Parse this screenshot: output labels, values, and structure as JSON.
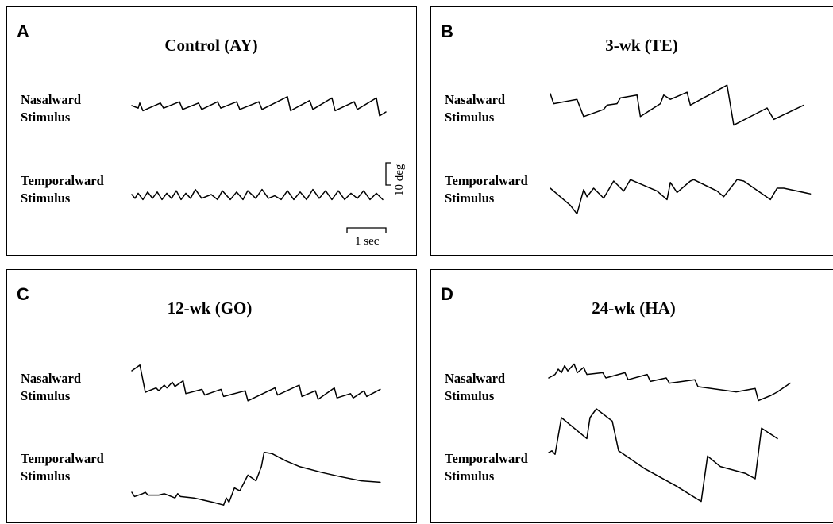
{
  "panels": [
    {
      "letter": "A",
      "title": "Control (AY)"
    },
    {
      "letter": "B",
      "title": "3-wk (TE)"
    },
    {
      "letter": "C",
      "title": "12-wk (GO)"
    },
    {
      "letter": "D",
      "title": "24-wk (HA)"
    }
  ],
  "labels": {
    "nasal_1": "Nasalward",
    "nasal_2": "Stimulus",
    "temporal_1": "Temporalward",
    "temporal_2": "Stimulus"
  },
  "scale_bar": {
    "vertical": "10 deg",
    "horizontal": "1 sec"
  },
  "chart_data": [
    {
      "type": "line",
      "title": "Control (AY)",
      "series": [
        {
          "name": "Nasalward Stimulus",
          "points": [
            [
              0,
              0
            ],
            [
              0.2,
              -0.4
            ],
            [
              0.25,
              0.4
            ],
            [
              0.35,
              -0.8
            ],
            [
              0.9,
              0.4
            ],
            [
              1.0,
              -0.4
            ],
            [
              1.5,
              0.6
            ],
            [
              1.6,
              -0.6
            ],
            [
              2.1,
              0.4
            ],
            [
              2.2,
              -0.6
            ],
            [
              2.7,
              0.6
            ],
            [
              2.8,
              -0.4
            ],
            [
              3.3,
              0.6
            ],
            [
              3.4,
              -0.6
            ],
            [
              4.0,
              0.6
            ],
            [
              4.1,
              -0.6
            ],
            [
              4.9,
              1.4
            ],
            [
              5.0,
              -0.8
            ],
            [
              5.6,
              0.8
            ],
            [
              5.7,
              -0.6
            ],
            [
              6.3,
              1.2
            ],
            [
              6.4,
              -0.8
            ],
            [
              7.0,
              0.6
            ],
            [
              7.1,
              -0.6
            ],
            [
              7.7,
              1.2
            ],
            [
              7.8,
              -1.6
            ],
            [
              8.0,
              -1.0
            ]
          ]
        },
        {
          "name": "Temporalward Stimulus",
          "points": [
            [
              0,
              0
            ],
            [
              0.1,
              -0.6
            ],
            [
              0.2,
              0.2
            ],
            [
              0.35,
              -0.8
            ],
            [
              0.5,
              0.4
            ],
            [
              0.65,
              -0.6
            ],
            [
              0.8,
              0.4
            ],
            [
              0.95,
              -0.8
            ],
            [
              1.1,
              0.2
            ],
            [
              1.25,
              -0.6
            ],
            [
              1.4,
              0.6
            ],
            [
              1.55,
              -0.8
            ],
            [
              1.7,
              0.2
            ],
            [
              1.85,
              -0.6
            ],
            [
              2.0,
              0.8
            ],
            [
              2.2,
              -0.6
            ],
            [
              2.5,
              0.0
            ],
            [
              2.7,
              -0.8
            ],
            [
              2.85,
              0.6
            ],
            [
              3.1,
              -0.8
            ],
            [
              3.3,
              0.4
            ],
            [
              3.5,
              -0.8
            ],
            [
              3.65,
              0.6
            ],
            [
              3.9,
              -0.6
            ],
            [
              4.1,
              0.8
            ],
            [
              4.3,
              -0.6
            ],
            [
              4.5,
              -0.2
            ],
            [
              4.7,
              -0.8
            ],
            [
              4.9,
              0.6
            ],
            [
              5.1,
              -0.8
            ],
            [
              5.3,
              0.4
            ],
            [
              5.5,
              -0.8
            ],
            [
              5.7,
              0.8
            ],
            [
              5.9,
              -0.6
            ],
            [
              6.1,
              0.6
            ],
            [
              6.3,
              -0.8
            ],
            [
              6.5,
              0.6
            ],
            [
              6.7,
              -0.8
            ],
            [
              6.9,
              0.2
            ],
            [
              7.1,
              -0.6
            ],
            [
              7.3,
              0.6
            ],
            [
              7.5,
              -0.8
            ],
            [
              7.7,
              0.2
            ],
            [
              7.9,
              -0.8
            ]
          ]
        }
      ]
    },
    {
      "type": "line",
      "title": "3-wk (TE)",
      "series": [
        {
          "name": "Nasalward Stimulus",
          "points": [
            [
              0,
              1.0
            ],
            [
              0.1,
              -0.4
            ],
            [
              0.8,
              0.2
            ],
            [
              1.0,
              -2.2
            ],
            [
              1.6,
              -1.2
            ],
            [
              1.7,
              -0.6
            ],
            [
              2.0,
              -0.4
            ],
            [
              2.1,
              0.4
            ],
            [
              2.6,
              0.8
            ],
            [
              2.7,
              -2.2
            ],
            [
              3.3,
              -0.4
            ],
            [
              3.4,
              0.8
            ],
            [
              3.6,
              0.2
            ],
            [
              4.1,
              1.2
            ],
            [
              4.2,
              -0.6
            ],
            [
              5.3,
              2.2
            ],
            [
              5.5,
              -3.4
            ],
            [
              6.5,
              -1.0
            ],
            [
              6.7,
              -2.6
            ],
            [
              7.6,
              -0.6
            ]
          ]
        },
        {
          "name": "Temporalward Stimulus",
          "points": [
            [
              0,
              0
            ],
            [
              0.6,
              -2.4
            ],
            [
              0.8,
              -3.6
            ],
            [
              1.0,
              -0.2
            ],
            [
              1.1,
              -1.2
            ],
            [
              1.3,
              0.0
            ],
            [
              1.6,
              -1.4
            ],
            [
              1.9,
              1.0
            ],
            [
              2.2,
              -0.4
            ],
            [
              2.4,
              1.2
            ],
            [
              3.2,
              -0.4
            ],
            [
              3.5,
              -1.6
            ],
            [
              3.6,
              0.8
            ],
            [
              3.8,
              -0.6
            ],
            [
              4.2,
              1.0
            ],
            [
              4.3,
              1.2
            ],
            [
              5.0,
              -0.4
            ],
            [
              5.2,
              -1.2
            ],
            [
              5.6,
              1.2
            ],
            [
              5.8,
              1.0
            ],
            [
              6.6,
              -1.6
            ],
            [
              6.8,
              0.0
            ],
            [
              7.0,
              0.0
            ],
            [
              7.8,
              -0.8
            ]
          ]
        }
      ]
    },
    {
      "type": "line",
      "title": "12-wk (GO)",
      "series": [
        {
          "name": "Nasalward Stimulus",
          "points": [
            [
              0,
              2.0
            ],
            [
              0.3,
              2.8
            ],
            [
              0.5,
              -1.0
            ],
            [
              0.9,
              -0.4
            ],
            [
              1.0,
              -0.8
            ],
            [
              1.2,
              0.0
            ],
            [
              1.3,
              -0.4
            ],
            [
              1.5,
              0.4
            ],
            [
              1.6,
              -0.2
            ],
            [
              1.9,
              0.6
            ],
            [
              2.0,
              -1.2
            ],
            [
              2.6,
              -0.6
            ],
            [
              2.7,
              -1.4
            ],
            [
              3.3,
              -0.6
            ],
            [
              3.4,
              -1.6
            ],
            [
              4.2,
              -0.8
            ],
            [
              4.3,
              -2.2
            ],
            [
              5.3,
              -0.4
            ],
            [
              5.4,
              -1.4
            ],
            [
              6.2,
              0.0
            ],
            [
              6.3,
              -1.6
            ],
            [
              6.8,
              -0.8
            ],
            [
              6.9,
              -2.0
            ],
            [
              7.5,
              -0.4
            ],
            [
              7.6,
              -1.8
            ],
            [
              8.1,
              -1.2
            ],
            [
              8.2,
              -1.8
            ],
            [
              8.6,
              -0.8
            ],
            [
              8.7,
              -1.6
            ],
            [
              9.2,
              -0.6
            ]
          ]
        },
        {
          "name": "Temporalward Stimulus",
          "points": [
            [
              0,
              0
            ],
            [
              0.1,
              -0.6
            ],
            [
              0.4,
              -0.2
            ],
            [
              0.5,
              0.0
            ],
            [
              0.6,
              -0.4
            ],
            [
              1.0,
              -0.4
            ],
            [
              1.2,
              -0.2
            ],
            [
              1.6,
              -0.8
            ],
            [
              1.7,
              -0.2
            ],
            [
              1.8,
              -0.6
            ],
            [
              2.3,
              -0.8
            ],
            [
              3.0,
              -1.4
            ],
            [
              3.4,
              -1.8
            ],
            [
              3.5,
              -0.8
            ],
            [
              3.6,
              -1.4
            ],
            [
              3.8,
              0.6
            ],
            [
              4.0,
              0.2
            ],
            [
              4.3,
              2.4
            ],
            [
              4.6,
              1.6
            ],
            [
              4.8,
              3.6
            ],
            [
              4.9,
              5.6
            ],
            [
              5.2,
              5.4
            ],
            [
              5.7,
              4.4
            ],
            [
              6.2,
              3.6
            ],
            [
              7.0,
              2.8
            ],
            [
              7.7,
              2.2
            ],
            [
              8.5,
              1.6
            ],
            [
              9.2,
              1.4
            ]
          ]
        }
      ]
    },
    {
      "type": "line",
      "title": "24-wk (HA)",
      "series": [
        {
          "name": "Nasalward Stimulus",
          "points": [
            [
              0,
              0
            ],
            [
              0.2,
              0.4
            ],
            [
              0.3,
              1.0
            ],
            [
              0.4,
              0.6
            ],
            [
              0.5,
              1.4
            ],
            [
              0.6,
              0.8
            ],
            [
              0.8,
              1.6
            ],
            [
              0.9,
              0.6
            ],
            [
              1.1,
              1.2
            ],
            [
              1.2,
              0.4
            ],
            [
              1.7,
              0.6
            ],
            [
              1.8,
              0.0
            ],
            [
              2.4,
              0.6
            ],
            [
              2.5,
              -0.2
            ],
            [
              3.1,
              0.4
            ],
            [
              3.2,
              -0.4
            ],
            [
              3.7,
              0.0
            ],
            [
              3.8,
              -0.6
            ],
            [
              4.6,
              -0.2
            ],
            [
              4.7,
              -1.0
            ],
            [
              5.9,
              -1.6
            ],
            [
              6.5,
              -1.2
            ],
            [
              6.6,
              -2.6
            ],
            [
              7.0,
              -2.0
            ],
            [
              7.2,
              -1.6
            ],
            [
              7.6,
              -0.6
            ]
          ]
        },
        {
          "name": "Temporalward Stimulus",
          "points": [
            [
              0,
              0
            ],
            [
              0.1,
              0.2
            ],
            [
              0.2,
              -0.2
            ],
            [
              0.4,
              4.0
            ],
            [
              1.2,
              1.6
            ],
            [
              1.3,
              4.0
            ],
            [
              1.5,
              5.0
            ],
            [
              2.0,
              3.6
            ],
            [
              2.2,
              0.2
            ],
            [
              3.0,
              -1.8
            ],
            [
              4.0,
              -3.8
            ],
            [
              4.8,
              -5.6
            ],
            [
              5.0,
              -0.4
            ],
            [
              5.4,
              -1.6
            ],
            [
              6.2,
              -2.4
            ],
            [
              6.5,
              -3.0
            ],
            [
              6.7,
              2.8
            ],
            [
              7.2,
              1.6
            ]
          ]
        }
      ]
    }
  ]
}
